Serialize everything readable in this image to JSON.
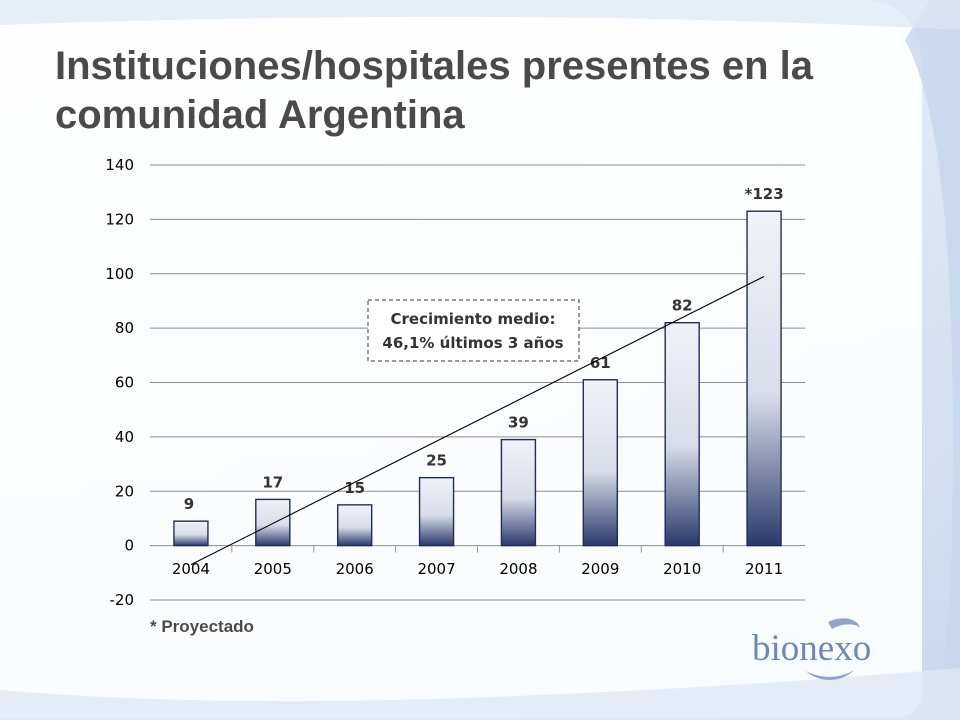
{
  "slide": {
    "title": "Instituciones/hospitales presentes en la comunidad Argentina",
    "footnote": "* Proyectado",
    "logo_text": "bionexo"
  },
  "colors": {
    "title": "#4a4a4a",
    "bar_top": "#f0f2f8",
    "bar_bottom": "#29396b",
    "logo": "#6f86b9"
  },
  "chart_data": {
    "type": "bar",
    "categories": [
      "2004",
      "2005",
      "2006",
      "2007",
      "2008",
      "2009",
      "2010",
      "2011"
    ],
    "values": [
      9,
      17,
      15,
      25,
      39,
      61,
      82,
      123
    ],
    "data_labels": [
      "9",
      "17",
      "15",
      "25",
      "39",
      "61",
      "82",
      "*123"
    ],
    "y_ticks": [
      "140",
      "120",
      "100",
      "80",
      "60",
      "40",
      "20",
      "0",
      "-20"
    ],
    "ylim": [
      -20,
      140
    ],
    "grid": true,
    "legend": "none",
    "trendline": {
      "type": "linear",
      "start": [
        2004,
        -7
      ],
      "end": [
        2011,
        99
      ]
    },
    "annotation": {
      "line1": "Crecimiento medio:",
      "line2": "46,1% últimos 3 años"
    }
  }
}
